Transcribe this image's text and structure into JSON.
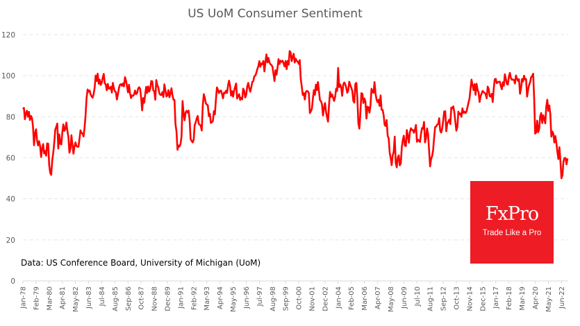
{
  "chart_data": {
    "type": "line",
    "title": "US UoM Consumer Sentiment",
    "xlabel": "",
    "ylabel": "",
    "ylim": [
      0,
      120
    ],
    "yticks": [
      0,
      20,
      40,
      60,
      80,
      100,
      120
    ],
    "grid": true,
    "legend": "none",
    "annotation": "Data: US Conference Board, University of Michigan (UoM)",
    "x_start": "Jan-78",
    "x_end": "Jun-22",
    "xtick_labels": [
      "Jan-78",
      "Feb-79",
      "Mar-80",
      "Apr-81",
      "May-82",
      "Jun-83",
      "Jul-84",
      "Aug-85",
      "Sep-86",
      "Oct-87",
      "Nov-88",
      "Dec-89",
      "Jan-91",
      "Feb-92",
      "Mar-93",
      "Apr-94",
      "May-95",
      "Jun-96",
      "Jul-97",
      "Aug-98",
      "Sep-99",
      "Oct-00",
      "Nov-01",
      "Dec-02",
      "Jan-04",
      "Feb-05",
      "Mar-06",
      "Apr-07",
      "May-08",
      "Jun-09",
      "Jul-10",
      "Aug-11",
      "Sep-12",
      "Oct-13",
      "Nov-14",
      "Dec-15",
      "Jan-17",
      "Feb-18",
      "Mar-19",
      "Apr-20",
      "May-21",
      "Jun-22"
    ],
    "series": [
      {
        "name": "UoM Consumer Sentiment",
        "color": "#ff0000",
        "frequency": "monthly",
        "values": [
          83.7,
          84.3,
          78.8,
          81.6,
          82.9,
          80.0,
          82.4,
          78.4,
          80.4,
          79.3,
          75.0,
          66.1,
          72.1,
          73.9,
          68.4,
          66.0,
          68.1,
          65.8,
          60.4,
          64.5,
          66.7,
          62.1,
          63.3,
          61.0,
          67.0,
          66.9,
          56.5,
          52.7,
          51.7,
          58.7,
          62.3,
          67.3,
          73.7,
          75.0,
          76.7,
          64.5,
          71.4,
          66.9,
          66.5,
          72.4,
          76.3,
          73.1,
          74.1,
          77.2,
          73.1,
          70.3,
          62.5,
          64.3,
          71.0,
          66.5,
          62.0,
          65.5,
          67.5,
          65.7,
          65.4,
          65.4,
          69.3,
          73.4,
          72.1,
          71.9,
          70.4,
          74.6,
          80.8,
          89.1,
          93.3,
          92.2,
          92.8,
          90.9,
          89.9,
          89.3,
          91.1,
          94.2,
          100.1,
          97.4,
          101.0,
          96.1,
          98.1,
          95.5,
          96.6,
          99.1,
          100.9,
          96.3,
          95.7,
          92.9,
          96.0,
          93.7,
          93.7,
          94.6,
          91.8,
          96.5,
          94.0,
          92.4,
          92.1,
          88.4,
          90.9,
          93.9,
          95.6,
          95.9,
          95.1,
          96.2,
          94.8,
          99.3,
          97.7,
          94.9,
          91.9,
          95.6,
          91.4,
          89.1,
          90.4,
          90.2,
          90.8,
          92.8,
          91.1,
          91.5,
          93.7,
          94.4,
          93.6,
          89.3,
          83.1,
          89.1,
          86.8,
          90.8,
          94.6,
          91.6,
          94.8,
          92.3,
          93.7,
          97.4,
          97.3,
          92.9,
          92.5,
          88.3,
          97.9,
          95.4,
          94.3,
          91.5,
          90.7,
          90.6,
          92.0,
          89.6,
          95.8,
          93.0,
          89.9,
          90.5,
          93.0,
          89.5,
          91.3,
          93.9,
          90.6,
          88.3,
          88.2,
          76.4,
          72.8,
          63.9,
          66.0,
          65.5,
          66.8,
          70.4,
          87.7,
          81.8,
          78.3,
          82.1,
          82.9,
          82.0,
          83.0,
          78.3,
          69.1,
          68.2,
          67.5,
          68.8,
          76.0,
          77.2,
          79.2,
          80.4,
          76.6,
          76.1,
          75.6,
          73.3,
          85.3,
          91.0,
          89.3,
          86.6,
          85.9,
          85.6,
          80.3,
          81.5,
          77.0,
          77.3,
          77.9,
          82.7,
          81.2,
          88.2,
          94.3,
          93.2,
          91.5,
          92.6,
          92.8,
          91.2,
          89.0,
          91.7,
          91.5,
          92.7,
          91.6,
          95.1,
          97.6,
          95.1,
          90.3,
          92.5,
          89.8,
          92.7,
          94.4,
          96.2,
          88.9,
          90.1,
          91.0,
          88.2,
          89.3,
          88.5,
          93.7,
          92.7,
          89.4,
          90.7,
          94.7,
          96.5,
          94.0,
          92.2,
          94.3,
          96.9,
          97.4,
          99.7,
          100.0,
          101.4,
          103.2,
          104.6,
          107.1,
          104.4,
          106.0,
          105.6,
          107.2,
          102.1,
          106.6,
          110.4,
          106.5,
          108.7,
          106.5,
          105.6,
          105.2,
          104.4,
          100.9,
          97.4,
          102.7,
          100.5,
          103.9,
          108.1,
          105.7,
          107.3,
          106.8,
          107.3,
          106.0,
          104.5,
          107.2,
          103.2,
          107.2,
          105.4,
          112.0,
          111.3,
          107.1,
          109.2,
          110.7,
          106.4,
          108.3,
          107.3,
          106.8,
          105.8,
          107.6,
          98.4,
          94.7,
          90.6,
          91.5,
          88.4,
          92.0,
          92.6,
          92.4,
          91.5,
          81.8,
          82.7,
          83.9,
          88.8,
          93.0,
          90.7,
          95.7,
          93.0,
          96.9,
          92.4,
          88.1,
          87.6,
          86.1,
          80.6,
          84.2,
          86.7,
          82.4,
          79.9,
          77.6,
          86.0,
          92.1,
          89.7,
          90.9,
          89.3,
          87.7,
          89.6,
          93.7,
          92.6,
          103.8,
          94.4,
          95.8,
          94.2,
          90.2,
          95.6,
          96.7,
          95.9,
          94.2,
          91.7,
          92.8,
          97.1,
          95.5,
          94.1,
          92.6,
          87.7,
          86.9,
          96.0,
          96.5,
          89.1,
          76.9,
          74.2,
          81.6,
          91.5,
          91.2,
          86.7,
          88.9,
          87.4,
          79.1,
          84.9,
          84.7,
          82.0,
          85.4,
          93.6,
          92.1,
          91.7,
          96.9,
          91.3,
          88.4,
          87.1,
          88.3,
          85.3,
          90.4,
          83.4,
          83.4,
          80.9,
          76.1,
          75.5,
          78.4,
          70.8,
          69.5,
          62.6,
          59.8,
          56.4,
          61.2,
          63.0,
          70.3,
          57.6,
          55.3,
          60.1,
          61.2,
          56.3,
          57.3,
          65.1,
          68.7,
          70.8,
          66.0,
          65.7,
          73.5,
          70.6,
          67.4,
          72.5,
          74.4,
          73.6,
          73.6,
          72.2,
          73.6,
          76.0,
          67.8,
          68.9,
          68.2,
          67.7,
          71.6,
          74.5,
          74.2,
          77.5,
          67.5,
          69.8,
          74.3,
          71.5,
          63.7,
          55.8,
          59.5,
          60.8,
          63.7,
          69.9,
          75.0,
          75.3,
          76.2,
          76.4,
          79.3,
          73.2,
          72.3,
          74.3,
          78.3,
          82.6,
          82.7,
          72.9,
          76.7,
          77.6,
          78.6,
          76.4,
          84.5,
          84.1,
          85.1,
          82.1,
          77.5,
          73.2,
          75.1,
          82.5,
          81.2,
          81.6,
          80.0,
          84.1,
          81.9,
          82.5,
          81.8,
          82.5,
          84.6,
          86.9,
          88.8,
          93.6,
          98.1,
          95.4,
          93.0,
          95.9,
          90.7,
          96.1,
          93.1,
          91.9,
          87.2,
          90.0,
          91.3,
          92.6,
          92.0,
          91.7,
          91.0,
          89.0,
          94.7,
          93.5,
          90.0,
          89.8,
          91.2,
          87.2,
          93.8,
          98.2,
          98.5,
          96.3,
          96.9,
          97.0,
          97.1,
          95.1,
          93.4,
          96.8,
          95.1,
          100.7,
          98.5,
          95.9,
          95.7,
          99.7,
          101.4,
          98.8,
          98.0,
          98.2,
          97.9,
          96.2,
          100.1,
          98.6,
          97.5,
          98.3,
          91.2,
          93.8,
          98.4,
          97.2,
          100.0,
          98.2,
          98.4,
          89.8,
          93.2,
          95.5,
          96.8,
          99.3,
          99.8,
          101.0,
          89.1,
          71.8,
          72.3,
          78.1,
          72.5,
          74.1,
          80.4,
          81.8,
          76.9,
          80.7,
          79.0,
          76.8,
          84.9,
          88.3,
          82.9,
          85.5,
          81.2,
          70.3,
          72.8,
          71.7,
          67.4,
          70.6,
          67.2,
          62.8,
          59.4,
          65.2,
          58.4,
          50.0,
          51.5,
          58.2,
          59.9,
          59.9,
          56.8,
          59.7
        ]
      }
    ]
  },
  "branding": {
    "logo_name": "FxPro",
    "logo_tagline": "Trade Like a Pro",
    "logo_color": "#ee1c25"
  }
}
